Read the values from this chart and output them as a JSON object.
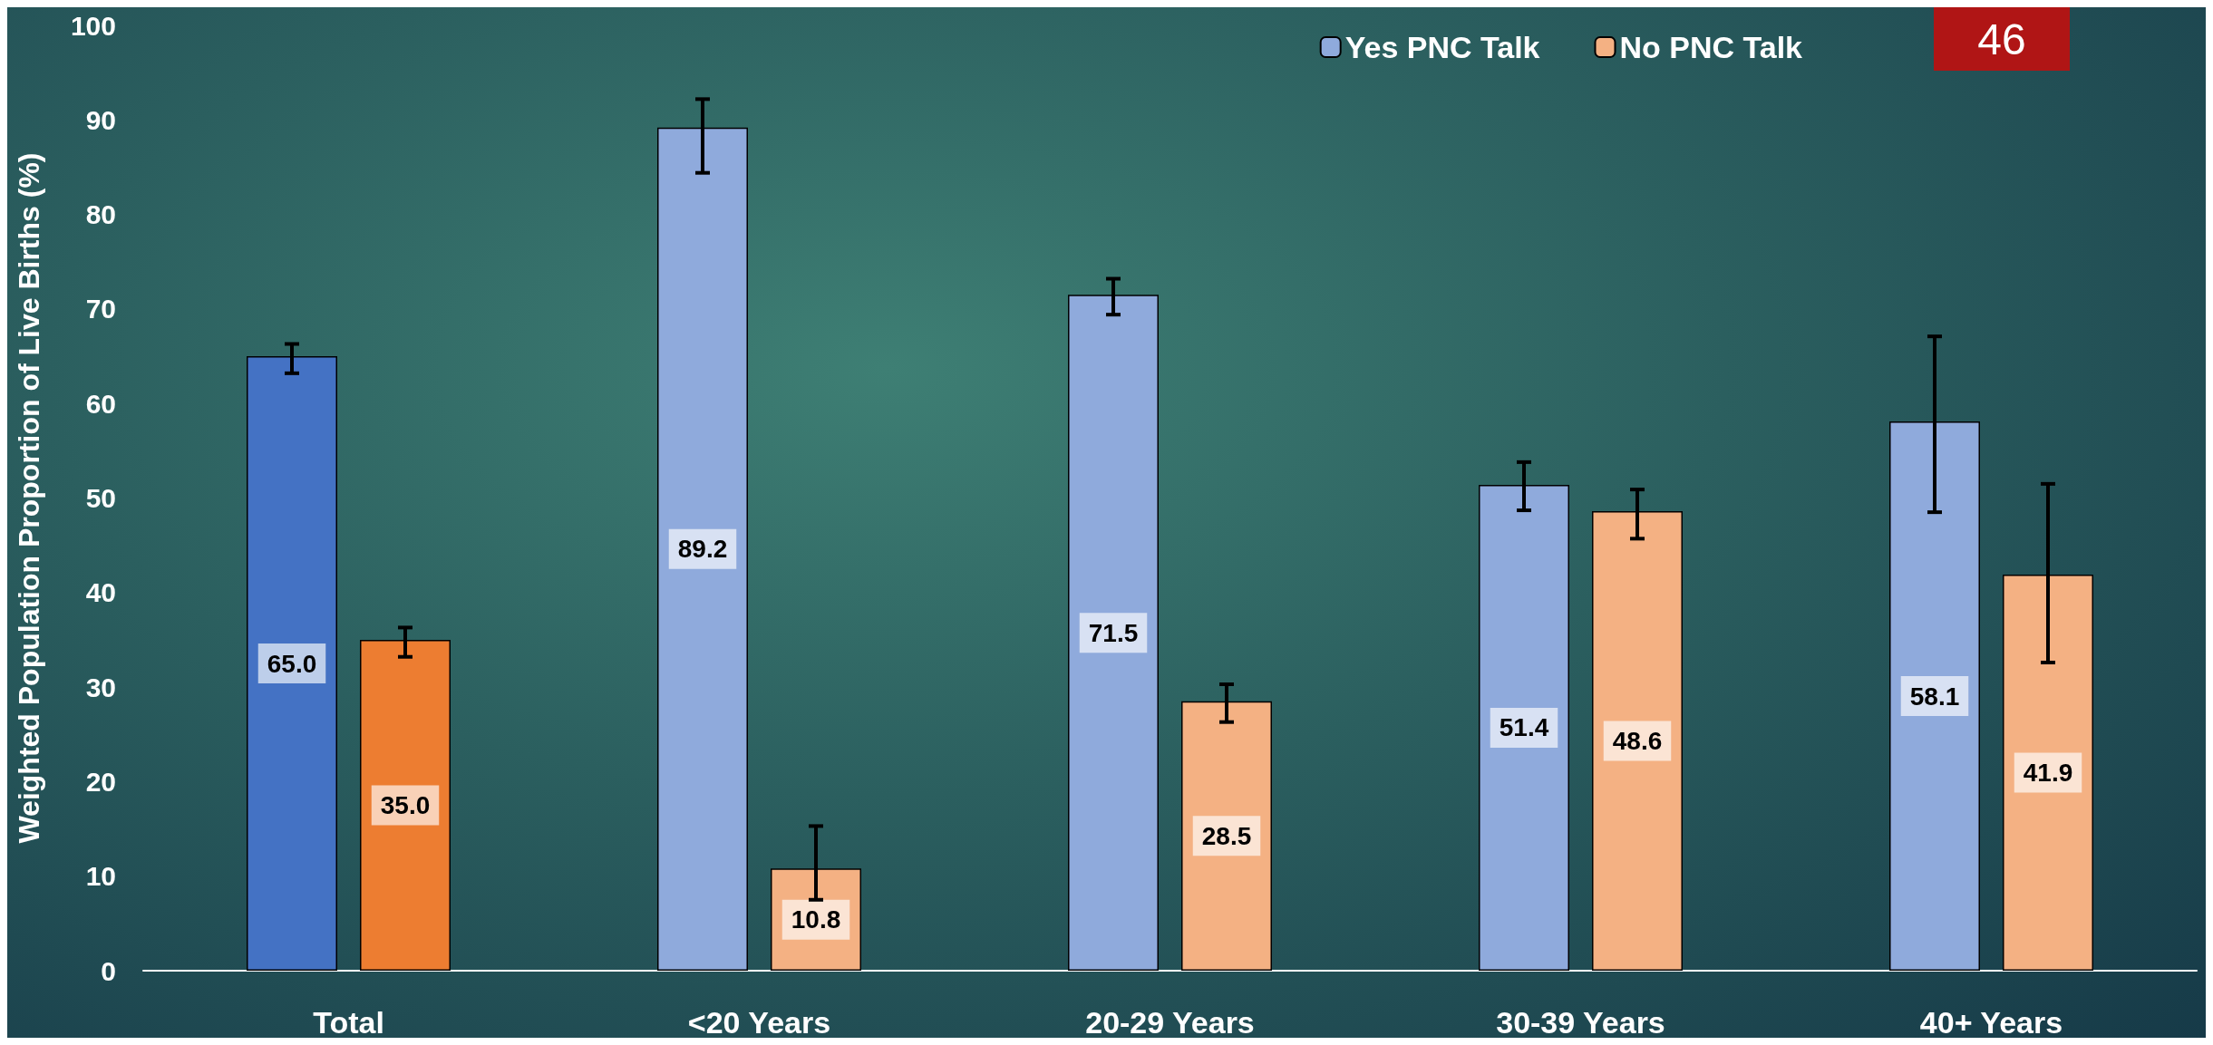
{
  "chart_data": {
    "type": "bar",
    "ylabel": "Weighted Population Proportion of Live Births (%)",
    "categories": [
      "Total",
      "<20 Years",
      "20-29 Years",
      "30-39 Years",
      "40+ Years"
    ],
    "series": [
      {
        "name": "Yes PNC Talk",
        "color": "#8faadc",
        "colors": [
          "#4472c4",
          "#8faadc",
          "#8faadc",
          "#8faadc",
          "#8faadc"
        ],
        "values": [
          65.0,
          89.2,
          71.5,
          51.4,
          58.1
        ],
        "value_labels": [
          "65.0",
          "89.2",
          "71.5",
          "51.4",
          "58.1"
        ],
        "errors": [
          [
            63.2,
            66.3
          ],
          [
            84.4,
            92.2
          ],
          [
            69.4,
            73.2
          ],
          [
            48.7,
            53.8
          ],
          [
            48.5,
            67.1
          ]
        ]
      },
      {
        "name": "No PNC Talk",
        "color": "#f4b183",
        "colors": [
          "#ed7d31",
          "#f4b183",
          "#f4b183",
          "#f4b183",
          "#f4b183"
        ],
        "values": [
          35.0,
          10.8,
          28.5,
          48.6,
          41.9
        ],
        "value_labels": [
          "35.0",
          "10.8",
          "28.5",
          "48.6",
          "41.9"
        ],
        "errors": [
          [
            33.2,
            36.3
          ],
          [
            7.5,
            15.3
          ],
          [
            26.3,
            30.3
          ],
          [
            45.7,
            50.9
          ],
          [
            32.6,
            51.5
          ]
        ]
      }
    ],
    "ylim": [
      0,
      100
    ],
    "yticks": [
      0,
      10,
      20,
      30,
      40,
      50,
      60,
      70,
      80,
      90,
      100
    ],
    "grid": false,
    "legend": "top right",
    "annotations": [
      "46"
    ]
  }
}
